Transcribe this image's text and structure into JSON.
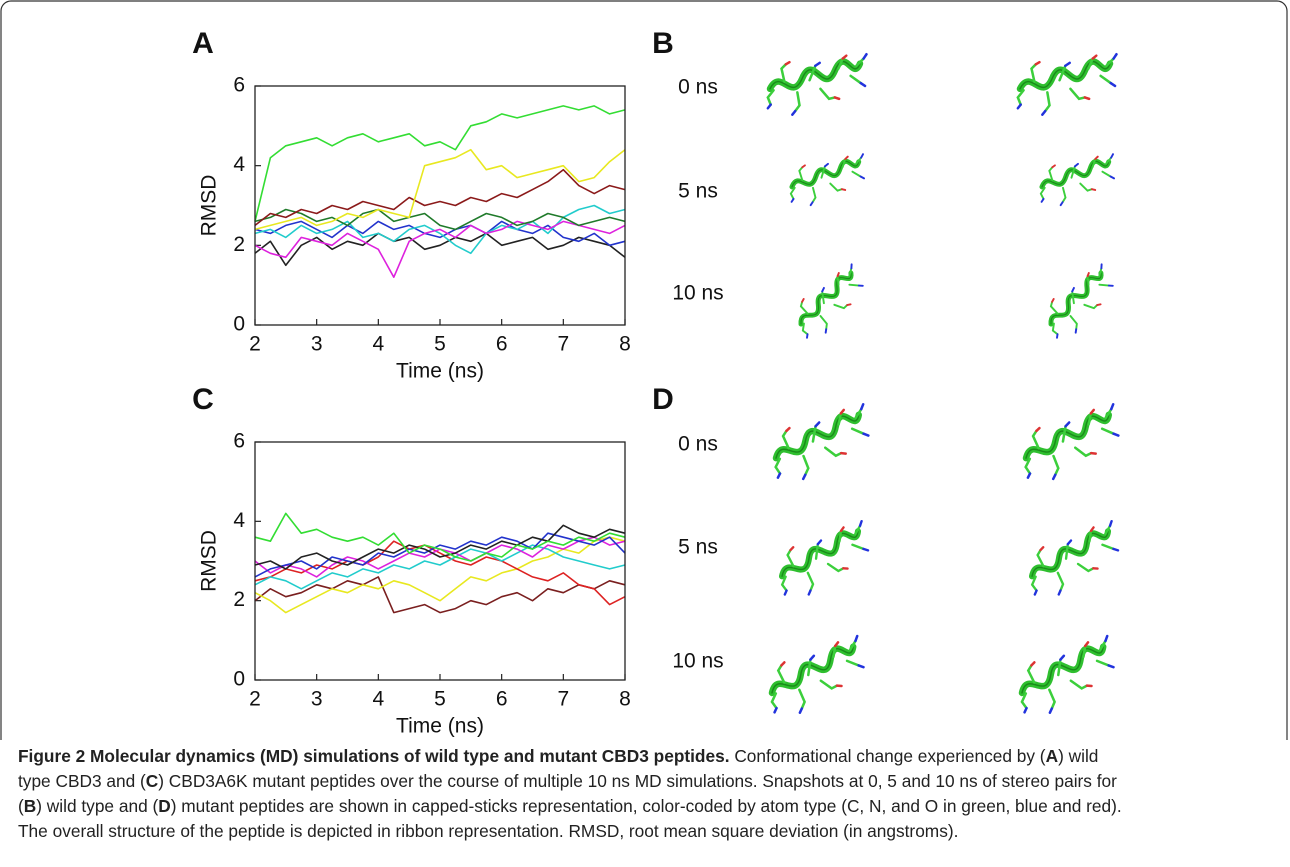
{
  "chart_data": [
    {
      "type": "line",
      "panel": "A",
      "xlabel": "Time (ns)",
      "ylabel": "RMSD",
      "x": [
        2,
        2.25,
        2.5,
        2.75,
        3,
        3.25,
        3.5,
        3.75,
        4,
        4.25,
        4.5,
        4.75,
        5,
        5.25,
        5.5,
        5.75,
        6,
        6.25,
        6.5,
        6.75,
        7,
        7.25,
        7.5,
        7.75,
        8
      ],
      "xlim": [
        2,
        8
      ],
      "xticks": [
        2,
        3,
        4,
        5,
        6,
        7,
        8
      ],
      "ylim": [
        0,
        6
      ],
      "yticks": [
        0,
        2,
        4,
        6
      ],
      "series": [
        {
          "color": "#222222",
          "values": [
            1.8,
            2.1,
            1.5,
            2.0,
            2.2,
            1.9,
            2.1,
            2.0,
            2.3,
            2.1,
            2.2,
            1.9,
            2.0,
            2.2,
            2.1,
            2.3,
            2.0,
            2.1,
            2.2,
            1.9,
            2.0,
            2.2,
            2.1,
            2.0,
            1.7
          ]
        },
        {
          "color": "#2233cc",
          "values": [
            2.4,
            2.3,
            2.5,
            2.6,
            2.4,
            2.2,
            2.5,
            2.3,
            2.6,
            2.4,
            2.5,
            2.3,
            2.2,
            2.4,
            2.5,
            2.3,
            2.6,
            2.4,
            2.3,
            2.5,
            2.2,
            2.1,
            2.3,
            2.0,
            2.1
          ]
        },
        {
          "color": "#22cccc",
          "values": [
            2.3,
            2.4,
            2.2,
            2.5,
            2.3,
            2.4,
            2.6,
            2.2,
            2.3,
            2.1,
            2.4,
            2.5,
            2.3,
            2.0,
            1.8,
            2.3,
            2.5,
            2.4,
            2.6,
            2.3,
            2.7,
            2.9,
            3.0,
            2.8,
            2.9
          ]
        },
        {
          "color": "#dd22dd",
          "values": [
            2.0,
            1.8,
            1.7,
            2.2,
            2.1,
            2.0,
            2.3,
            2.1,
            1.9,
            1.2,
            2.1,
            2.3,
            2.4,
            2.2,
            2.5,
            2.3,
            2.4,
            2.6,
            2.5,
            2.4,
            2.6,
            2.5,
            2.4,
            2.3,
            2.5
          ]
        },
        {
          "color": "#1f7a2a",
          "values": [
            2.6,
            2.7,
            2.9,
            2.8,
            2.6,
            2.7,
            2.5,
            2.8,
            2.9,
            2.6,
            2.7,
            2.8,
            2.5,
            2.4,
            2.6,
            2.8,
            2.7,
            2.5,
            2.6,
            2.8,
            2.7,
            2.5,
            2.6,
            2.7,
            2.6
          ]
        },
        {
          "color": "#8b1a1a",
          "values": [
            2.5,
            2.8,
            2.7,
            2.9,
            2.8,
            3.0,
            2.9,
            3.1,
            3.0,
            2.9,
            3.2,
            3.0,
            3.1,
            3.0,
            3.2,
            3.1,
            3.3,
            3.2,
            3.4,
            3.6,
            3.9,
            3.5,
            3.3,
            3.5,
            3.4
          ]
        },
        {
          "color": "#e8e820",
          "values": [
            2.4,
            2.5,
            2.6,
            2.7,
            2.5,
            2.6,
            2.8,
            2.7,
            2.9,
            2.8,
            2.7,
            4.0,
            4.1,
            4.2,
            4.4,
            3.9,
            4.0,
            3.7,
            3.8,
            3.9,
            4.0,
            3.6,
            3.7,
            4.1,
            4.4
          ]
        },
        {
          "color": "#33dd33",
          "values": [
            2.6,
            4.2,
            4.5,
            4.6,
            4.7,
            4.5,
            4.7,
            4.8,
            4.6,
            4.7,
            4.8,
            4.5,
            4.6,
            4.4,
            5.0,
            5.1,
            5.3,
            5.2,
            5.3,
            5.4,
            5.5,
            5.4,
            5.5,
            5.3,
            5.4
          ]
        }
      ]
    },
    {
      "type": "line",
      "panel": "C",
      "xlabel": "Time (ns)",
      "ylabel": "RMSD",
      "x": [
        2,
        2.25,
        2.5,
        2.75,
        3,
        3.25,
        3.5,
        3.75,
        4,
        4.25,
        4.5,
        4.75,
        5,
        5.25,
        5.5,
        5.75,
        6,
        6.25,
        6.5,
        6.75,
        7,
        7.25,
        7.5,
        7.75,
        8
      ],
      "xlim": [
        2,
        8
      ],
      "xticks": [
        2,
        3,
        4,
        5,
        6,
        7,
        8
      ],
      "ylim": [
        0,
        6
      ],
      "yticks": [
        0,
        2,
        4,
        6
      ],
      "series": [
        {
          "color": "#7a1f1f",
          "values": [
            2.0,
            2.3,
            2.1,
            2.2,
            2.4,
            2.3,
            2.5,
            2.4,
            2.6,
            1.7,
            1.8,
            1.9,
            1.7,
            1.8,
            2.0,
            1.9,
            2.1,
            2.2,
            2.0,
            2.3,
            2.2,
            2.4,
            2.3,
            2.5,
            2.4
          ]
        },
        {
          "color": "#e8e820",
          "values": [
            2.2,
            2.0,
            1.7,
            1.9,
            2.1,
            2.3,
            2.2,
            2.4,
            2.3,
            2.5,
            2.4,
            2.2,
            2.0,
            2.3,
            2.6,
            2.5,
            2.7,
            2.8,
            3.0,
            3.1,
            3.3,
            3.2,
            3.5,
            3.6,
            3.5
          ]
        },
        {
          "color": "#dd2222",
          "values": [
            2.5,
            2.6,
            2.8,
            2.7,
            2.9,
            2.8,
            3.0,
            2.9,
            3.1,
            3.5,
            3.3,
            3.4,
            3.2,
            3.0,
            2.9,
            3.1,
            3.0,
            2.8,
            2.6,
            2.5,
            2.7,
            2.4,
            2.3,
            1.9,
            2.1
          ]
        },
        {
          "color": "#22cccc",
          "values": [
            2.4,
            2.6,
            2.5,
            2.3,
            2.5,
            2.7,
            2.6,
            2.8,
            2.7,
            2.9,
            2.8,
            3.0,
            2.9,
            3.1,
            3.3,
            3.2,
            3.0,
            3.2,
            3.4,
            3.3,
            3.1,
            3.0,
            2.9,
            2.8,
            2.9
          ]
        },
        {
          "color": "#dd22dd",
          "values": [
            3.0,
            2.7,
            2.9,
            2.8,
            2.6,
            2.9,
            3.1,
            3.0,
            2.8,
            3.0,
            3.2,
            3.1,
            3.3,
            3.2,
            3.0,
            3.2,
            3.4,
            3.3,
            3.1,
            3.4,
            3.3,
            3.5,
            3.6,
            3.4,
            3.5
          ]
        },
        {
          "color": "#2233cc",
          "values": [
            2.6,
            2.8,
            2.9,
            3.0,
            2.8,
            3.1,
            3.0,
            2.9,
            3.2,
            3.1,
            3.3,
            3.2,
            3.4,
            3.3,
            3.5,
            3.4,
            3.6,
            3.5,
            3.3,
            3.7,
            3.6,
            3.5,
            3.4,
            3.6,
            3.2
          ]
        },
        {
          "color": "#222222",
          "values": [
            2.9,
            3.0,
            2.8,
            3.1,
            3.2,
            3.0,
            2.9,
            3.1,
            3.3,
            3.2,
            3.4,
            3.3,
            3.1,
            3.2,
            3.4,
            3.3,
            3.5,
            3.4,
            3.6,
            3.5,
            3.9,
            3.7,
            3.6,
            3.8,
            3.7
          ]
        },
        {
          "color": "#33dd33",
          "values": [
            3.6,
            3.5,
            4.2,
            3.7,
            3.8,
            3.6,
            3.5,
            3.6,
            3.4,
            3.7,
            3.2,
            3.4,
            3.3,
            3.1,
            3.0,
            3.2,
            3.1,
            3.4,
            3.3,
            3.5,
            3.4,
            3.6,
            3.5,
            3.7,
            3.6
          ]
        }
      ]
    }
  ],
  "snapshots": [
    {
      "panel": "B",
      "times": [
        "0 ns",
        "5 ns",
        "10 ns"
      ]
    },
    {
      "panel": "D",
      "times": [
        "0 ns",
        "5 ns",
        "10 ns"
      ]
    }
  ],
  "caption": {
    "lines": [
      [
        {
          "text": "Figure 2 Molecular dynamics (MD) simulations of wild type and mutant CBD3 peptides.",
          "bold": true
        },
        {
          "text": " Conformational change experienced by (",
          "bold": false
        },
        {
          "text": "A",
          "bold": true
        },
        {
          "text": ") wild",
          "bold": false
        }
      ],
      [
        {
          "text": "type CBD3 and (",
          "bold": false
        },
        {
          "text": "C",
          "bold": true
        },
        {
          "text": ") CBD3A6K mutant peptides over the course of multiple 10 ns MD simulations. Snapshots at 0, 5 and 10 ns of stereo pairs for",
          "bold": false
        }
      ],
      [
        {
          "text": "(",
          "bold": false
        },
        {
          "text": "B",
          "bold": true
        },
        {
          "text": ") wild type and (",
          "bold": false
        },
        {
          "text": "D",
          "bold": true
        },
        {
          "text": ") mutant peptides are shown in capped-sticks representation, color-coded by atom type (C, N, and O in green, blue and red).",
          "bold": false
        }
      ],
      [
        {
          "text": "The overall structure of the peptide is depicted in ribbon representation. RMSD, root mean square deviation (in angstroms).",
          "bold": false
        }
      ]
    ]
  }
}
